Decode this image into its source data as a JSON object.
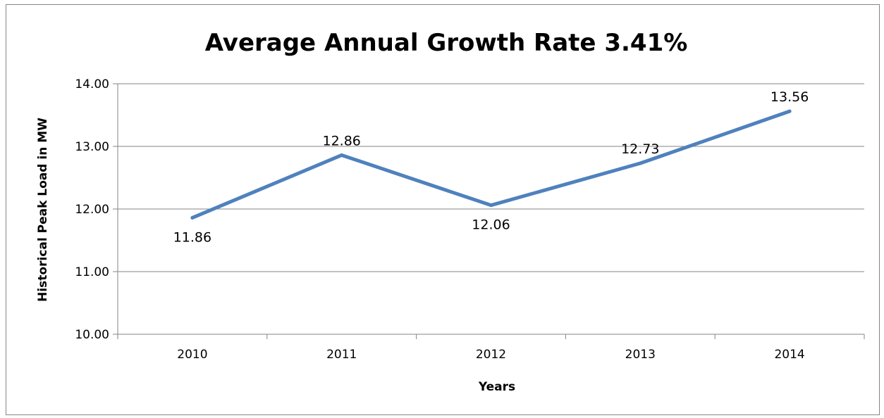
{
  "chart_data": {
    "type": "line",
    "title": "Average Annual Growth Rate 3.41%",
    "xlabel": "Years",
    "ylabel": "Historical Peak Load in MW",
    "categories": [
      "2010",
      "2011",
      "2012",
      "2013",
      "2014"
    ],
    "ylim": [
      10,
      14
    ],
    "y_ticks": [
      10,
      11,
      12,
      13,
      14
    ],
    "y_tick_labels": [
      "10.00",
      "11.00",
      "12.00",
      "13.00",
      "14.00"
    ],
    "series": [
      {
        "values": [
          11.86,
          12.86,
          12.06,
          12.73,
          13.56
        ],
        "data_labels": [
          "11.86",
          "12.86",
          "12.06",
          "12.73",
          "13.56"
        ],
        "color": "#4f81bd"
      }
    ],
    "grid": true,
    "legend": "none",
    "gridline_color": "#868686",
    "axis_color": "#868686"
  }
}
